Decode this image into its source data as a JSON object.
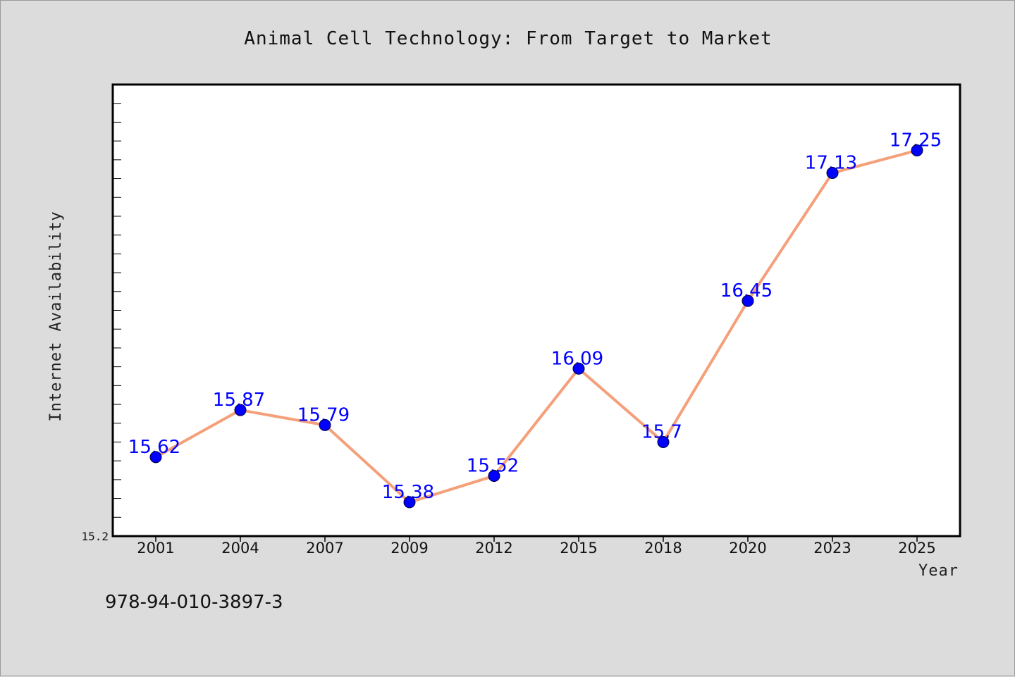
{
  "chart_data": {
    "type": "line",
    "title": "Animal Cell Technology: From Target to Market",
    "xlabel": "Year",
    "ylabel": "Internet Availability",
    "categories": [
      "2001",
      "2004",
      "2007",
      "2009",
      "2012",
      "2015",
      "2018",
      "2020",
      "2023",
      "2025"
    ],
    "series": [
      {
        "values": [
          15.62,
          15.87,
          15.79,
          15.38,
          15.52,
          16.09,
          15.7,
          16.45,
          17.13,
          17.25
        ]
      }
    ],
    "data_labels": [
      "15.62",
      "15.87",
      "15.79",
      "15.38",
      "15.52",
      "16.09",
      "15.7",
      "16.45",
      "17.13",
      "17.25"
    ],
    "ylim": [
      15.2,
      17.6
    ],
    "ytick_labels": [
      "15.2"
    ],
    "grid": false,
    "colors": {
      "line": "#f4a07a",
      "marker": "#0000ff",
      "label": "#0000ff"
    }
  },
  "footer": {
    "isbn": "978-94-010-3897-3"
  }
}
